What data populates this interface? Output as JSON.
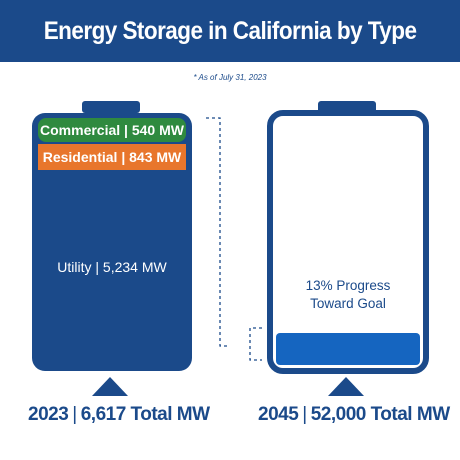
{
  "title": "Energy Storage in California by Type",
  "note": "* As of July 31, 2023",
  "chart_data": {
    "type": "bar",
    "colors": {
      "brand": "#1b4a8a",
      "commercial": "#2f8a3f",
      "residential": "#e8762c",
      "utility": "#1b4a8a",
      "progress": "#1565c0"
    },
    "current": {
      "year": "2023",
      "total_label": "6,617 Total MW",
      "total_mw": 6617,
      "segments": [
        {
          "name": "Commercial",
          "value_label": "540 MW",
          "value": 540
        },
        {
          "name": "Residential",
          "value_label": "843 MW",
          "value": 843
        },
        {
          "name": "Utility",
          "value_label": "5,234 MW",
          "value": 5234
        }
      ]
    },
    "goal": {
      "year": "2045",
      "total_label": "52,000 Total MW",
      "total_mw": 52000,
      "progress_fraction": 0.13,
      "progress_label_line1": "13% Progress",
      "progress_label_line2": "Toward Goal"
    }
  }
}
